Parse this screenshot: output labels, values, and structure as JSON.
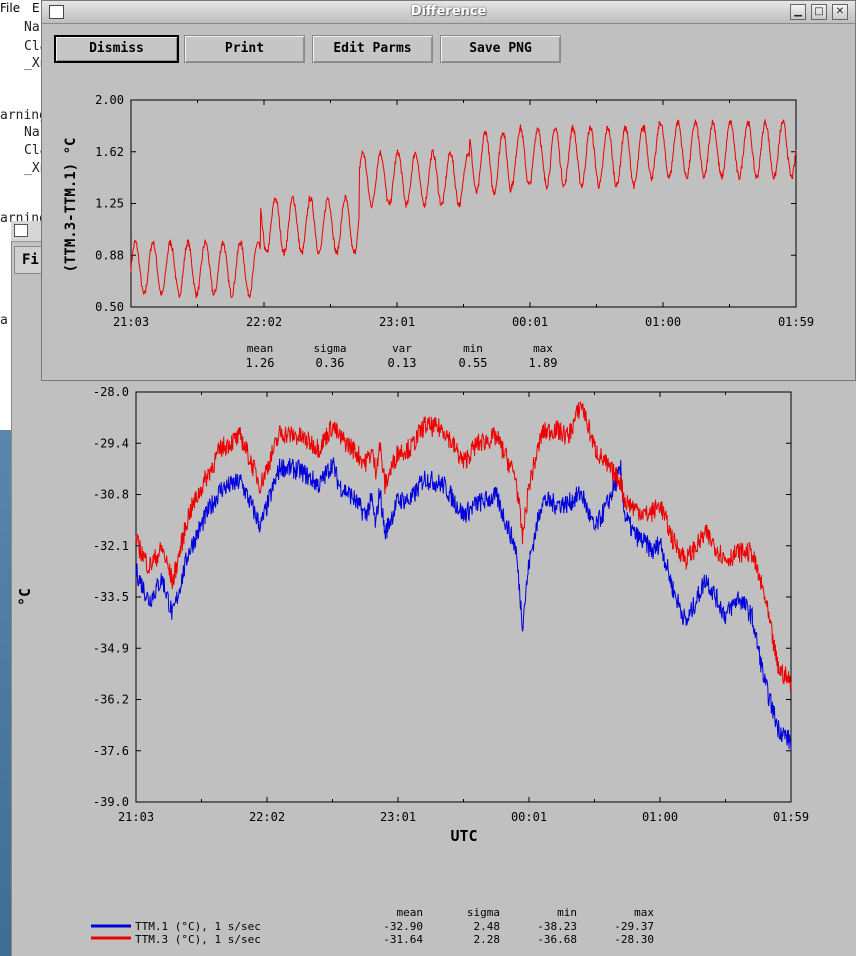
{
  "background_terminal": {
    "menu": [
      "File",
      "E"
    ],
    "lines": [
      "Nar",
      "Cla",
      "_Xn",
      "arning",
      "Nar",
      "Cla",
      "_Xn",
      "arning",
      "a"
    ]
  },
  "main_window": {
    "menu_file": "Fi",
    "xlabel": "UTC",
    "ylabel": "°C",
    "stats_headers": [
      "mean",
      "sigma",
      "min",
      "max"
    ],
    "legend": [
      {
        "label": "TTM.1 (°C), 1 s/sec",
        "color": "#0000dd",
        "mean": "-32.90",
        "sigma": "2.48",
        "min": "-38.23",
        "max": "-29.37"
      },
      {
        "label": "TTM.3 (°C), 1 s/sec",
        "color": "#ee0000",
        "mean": "-31.64",
        "sigma": "2.28",
        "min": "-36.68",
        "max": "-28.30"
      }
    ]
  },
  "difference_window": {
    "title": "Difference",
    "buttons": {
      "dismiss": "Dismiss",
      "print": "Print",
      "edit": "Edit Parms",
      "save": "Save PNG"
    },
    "ylabel": "(TTM.3-TTM.1) °C",
    "stats": {
      "headers": [
        "mean",
        "sigma",
        "var",
        "min",
        "max"
      ],
      "values": [
        "1.26",
        "0.36",
        "0.13",
        "0.55",
        "1.89"
      ]
    }
  },
  "chart_data": [
    {
      "type": "line",
      "title": "Difference",
      "xlabel": "",
      "ylabel": "(TTM.3-TTM.1) °C",
      "xticks": [
        "21:03",
        "22:02",
        "23:01",
        "00:01",
        "01:00",
        "01:59"
      ],
      "yticks": [
        "2.00",
        "1.62",
        "1.25",
        "0.88",
        "0.50"
      ],
      "ylim": [
        0.5,
        2.0
      ],
      "series": [
        {
          "color": "#ee0000",
          "segments": [
            {
              "x": [
                0.0,
                0.34
              ],
              "center": 0.78,
              "amp": 0.19
            },
            {
              "x": [
                0.34,
                0.6
              ],
              "center": 1.09,
              "amp": 0.2
            },
            {
              "x": [
                0.6,
                0.89
              ],
              "center": 1.43,
              "amp": 0.19
            },
            {
              "x": [
                0.89,
                1.0
              ],
              "center": 1.55,
              "amp": 0.22
            },
            {
              "x": [
                1.0,
                1.35
              ],
              "center": 1.59,
              "amp": 0.21
            },
            {
              "x": [
                1.35,
                1.75
              ],
              "center": 1.64,
              "amp": 0.2
            }
          ]
        }
      ]
    },
    {
      "type": "line",
      "xlabel": "UTC",
      "ylabel": "°C",
      "xticks": [
        "21:03",
        "22:02",
        "23:01",
        "00:01",
        "01:00",
        "01:59"
      ],
      "yticks": [
        "-28.0",
        "-29.4",
        "-30.8",
        "-32.1",
        "-33.5",
        "-34.9",
        "-36.2",
        "-37.6",
        "-39.0"
      ],
      "ylim": [
        -39.0,
        -28.0
      ],
      "series": [
        {
          "name": "TTM.1 (°C), 1 s/sec",
          "color": "#0000dd",
          "x": [
            0.0,
            0.1,
            0.2,
            0.28,
            0.4,
            0.55,
            0.65,
            0.8,
            0.95,
            1.1,
            1.25,
            1.4,
            1.5,
            1.55,
            1.65,
            1.75,
            1.8,
            1.83,
            1.86,
            1.9,
            2.0,
            2.1,
            2.2,
            2.35,
            2.5,
            2.6,
            2.75,
            2.9,
            2.95,
            3.0,
            3.1,
            3.2,
            3.3,
            3.4,
            3.5,
            3.6,
            3.7,
            3.73,
            3.8,
            3.9,
            3.95,
            4.0,
            4.1,
            4.2,
            4.35,
            4.5,
            4.6,
            4.7,
            4.8,
            4.9,
            5.0
          ],
          "y": [
            -32.8,
            -33.6,
            -33.0,
            -34.0,
            -32.3,
            -31.2,
            -30.6,
            -30.4,
            -31.6,
            -30.0,
            -30.1,
            -30.5,
            -29.9,
            -30.5,
            -30.8,
            -31.3,
            -30.9,
            -31.6,
            -30.6,
            -31.8,
            -30.9,
            -30.9,
            -30.3,
            -30.5,
            -31.3,
            -31.0,
            -30.8,
            -32.2,
            -34.2,
            -32.6,
            -30.9,
            -31.0,
            -31.0,
            -30.7,
            -31.7,
            -31.0,
            -30.1,
            -31.3,
            -31.8,
            -32.1,
            -32.3,
            -32.0,
            -33.3,
            -34.2,
            -33.0,
            -34.0,
            -33.5,
            -34.0,
            -35.8,
            -37.0,
            -37.4
          ]
        },
        {
          "name": "TTM.3 (°C), 1 s/sec",
          "color": "#ee0000",
          "x": [
            0.0,
            0.1,
            0.2,
            0.28,
            0.4,
            0.55,
            0.65,
            0.8,
            0.95,
            1.1,
            1.25,
            1.4,
            1.5,
            1.55,
            1.65,
            1.75,
            1.8,
            1.83,
            1.86,
            1.9,
            2.0,
            2.1,
            2.2,
            2.35,
            2.5,
            2.6,
            2.75,
            2.9,
            2.95,
            3.0,
            3.1,
            3.2,
            3.3,
            3.4,
            3.5,
            3.6,
            3.7,
            3.73,
            3.8,
            3.9,
            3.95,
            4.0,
            4.1,
            4.2,
            4.35,
            4.5,
            4.6,
            4.7,
            4.8,
            4.9,
            5.0
          ],
          "y": [
            -32.0,
            -32.7,
            -32.2,
            -33.1,
            -31.3,
            -30.2,
            -29.5,
            -29.2,
            -30.5,
            -29.1,
            -29.2,
            -29.5,
            -28.9,
            -29.2,
            -29.5,
            -29.9,
            -29.6,
            -30.1,
            -29.4,
            -30.5,
            -29.6,
            -29.5,
            -28.9,
            -29.0,
            -29.9,
            -29.4,
            -29.2,
            -30.3,
            -31.9,
            -30.5,
            -29.1,
            -29.0,
            -29.2,
            -28.3,
            -29.5,
            -30.0,
            -30.4,
            -30.9,
            -31.1,
            -31.3,
            -31.2,
            -31.0,
            -32.0,
            -32.5,
            -31.8,
            -32.5,
            -32.3,
            -32.3,
            -33.5,
            -35.4,
            -35.8
          ]
        }
      ]
    }
  ]
}
